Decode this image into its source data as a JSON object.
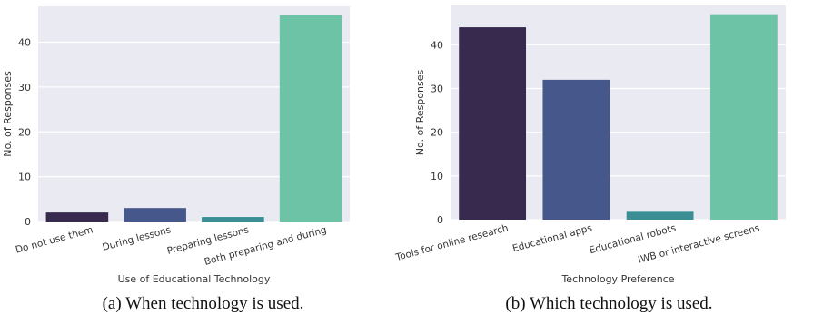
{
  "chart_data": [
    {
      "type": "bar",
      "categories": [
        "Do not use them",
        "During lessons",
        "Preparing lessons",
        "Both preparing and during"
      ],
      "values": [
        2,
        3,
        1,
        46
      ],
      "colors": [
        "#382a4f",
        "#45578b",
        "#3b8e93",
        "#6cc3a6"
      ],
      "xlabel": "Use of Educational Technology",
      "ylabel": "No. of Responses",
      "ylim": [
        0,
        48
      ],
      "yticks": [
        0,
        10,
        20,
        30,
        40
      ],
      "grid": "y",
      "background": "#eaeaf2",
      "caption": "(a) When technology is used."
    },
    {
      "type": "bar",
      "categories": [
        "Tools for online research",
        "Educational apps",
        "Educational robots",
        "IWB or interactive screens"
      ],
      "values": [
        44,
        32,
        2,
        47
      ],
      "colors": [
        "#382a4f",
        "#45578b",
        "#3b8e93",
        "#6cc3a6"
      ],
      "xlabel": "Technology Preference",
      "ylabel": "No. of Responses",
      "ylim": [
        0,
        49
      ],
      "yticks": [
        0,
        10,
        20,
        30,
        40
      ],
      "grid": "y",
      "background": "#eaeaf2",
      "caption": "(b)  Which technology is used."
    }
  ]
}
